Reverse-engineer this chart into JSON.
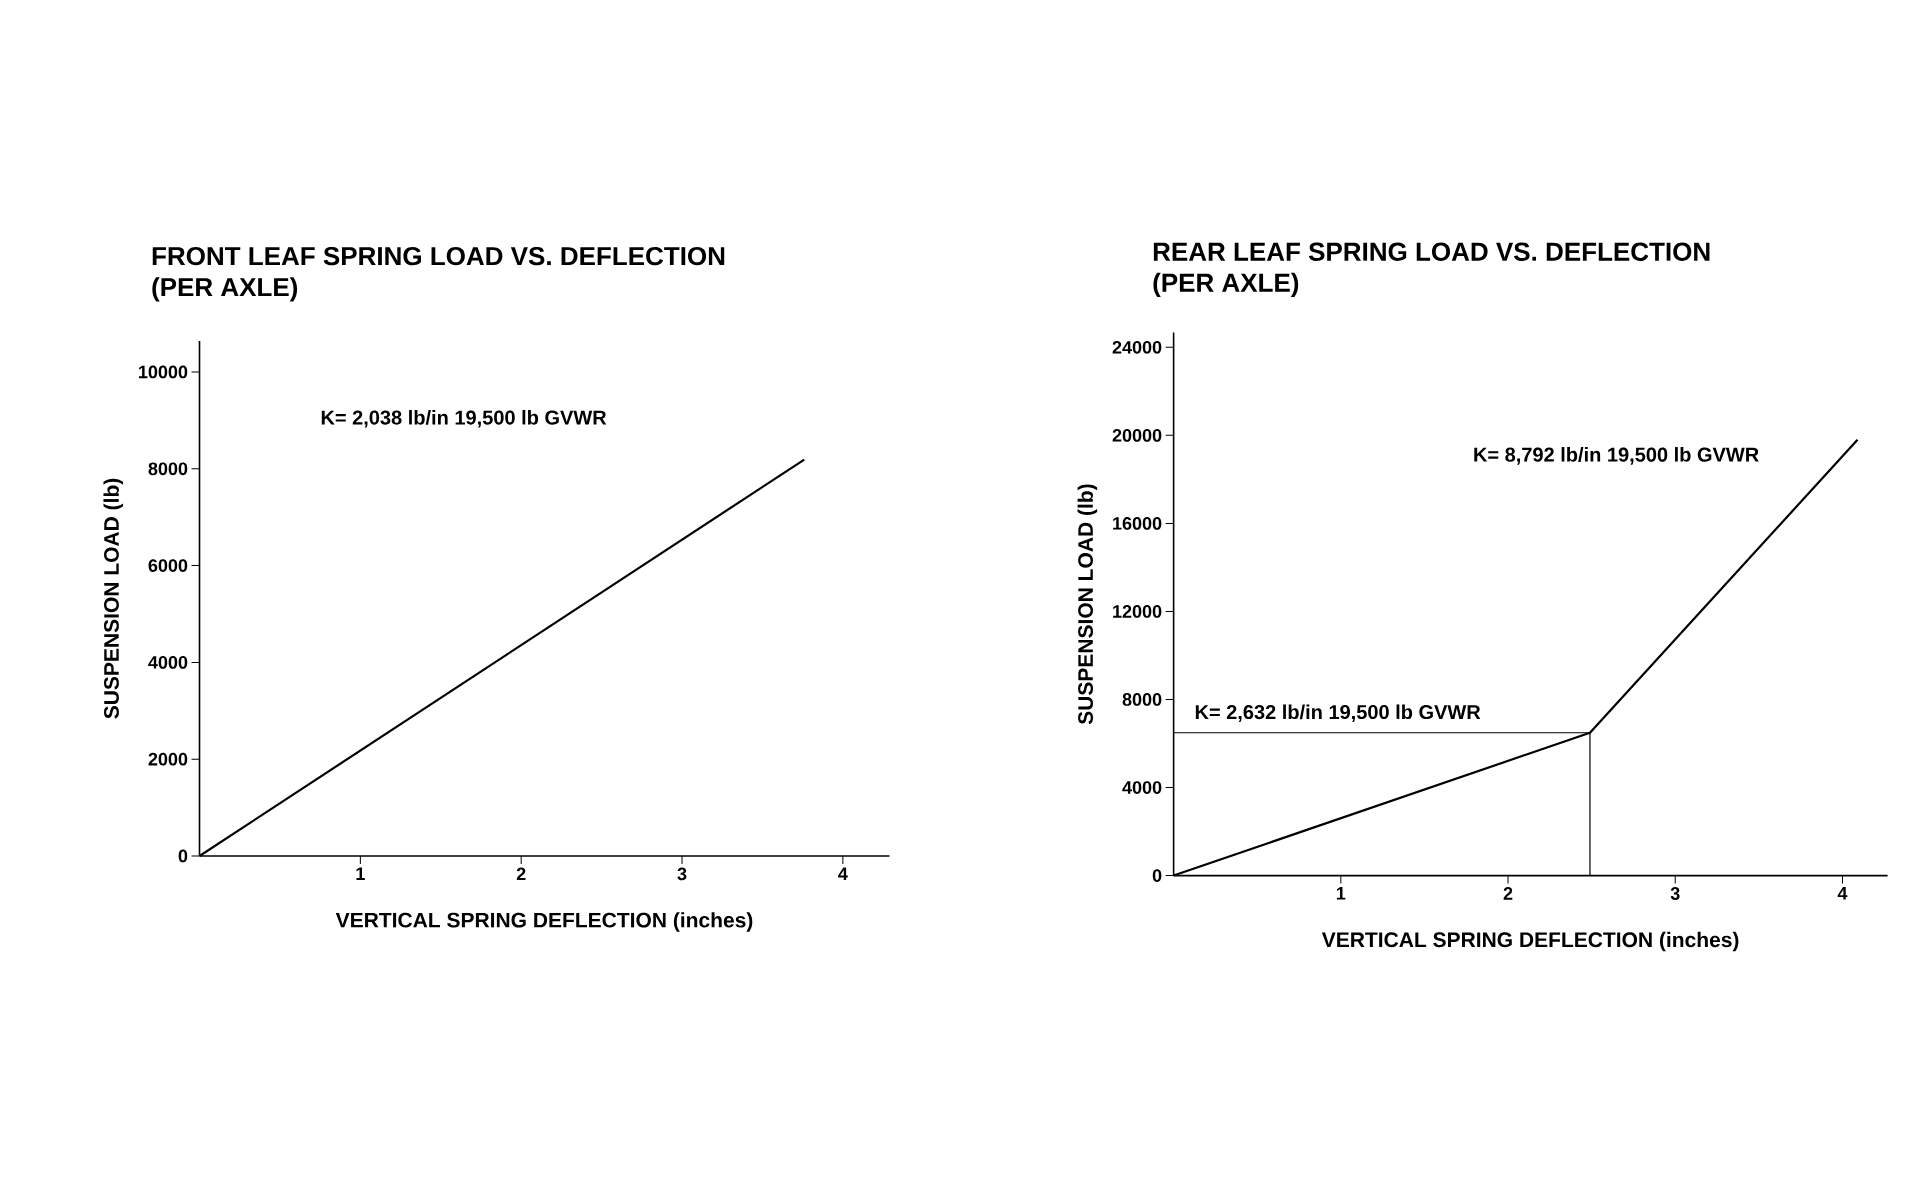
{
  "chart_data": [
    {
      "type": "line",
      "title": "FRONT LEAF SPRING LOAD VS. DEFLECTION",
      "subtitle": "(PER AXLE)",
      "xlabel": "VERTICAL SPRING DEFLECTION (inches)",
      "ylabel": "SUSPENSION LOAD (lb)",
      "x": [
        0,
        3.76
      ],
      "values": [
        0,
        8190
      ],
      "color": "#000000",
      "xlim": [
        0,
        4.29
      ],
      "ylim": [
        0,
        10640
      ],
      "xticks": [
        1,
        2,
        3,
        4
      ],
      "yticks": [
        {
          "value": 0,
          "label": "0"
        },
        2000,
        4000,
        6000,
        8000,
        10000
      ],
      "annotations": [
        "K= 2,038 lb/in 19,500 lb GVWR"
      ]
    },
    {
      "type": "line",
      "title": "REAR LEAF SPRING LOAD VS. DEFLECTION",
      "subtitle": "(PER AXLE)",
      "xlabel": "VERTICAL SPRING DEFLECTION (inches)",
      "ylabel": "SUSPENSION LOAD (lb)",
      "x": [
        0,
        2.49,
        4.09
      ],
      "values": [
        0,
        6490,
        19800
      ],
      "color": "#000000",
      "xlim": [
        0,
        4.27
      ],
      "ylim": [
        0,
        24670
      ],
      "xticks": [
        1,
        2,
        3,
        4
      ],
      "yticks": [
        {
          "value": 0,
          "label": "0"
        },
        4000,
        8000,
        12000,
        16000,
        20000,
        24000
      ],
      "ref_lines": [
        {
          "axis": "y",
          "value": 6490
        },
        {
          "axis": "x",
          "value": 2.49
        }
      ],
      "annotations": [
        "K= 8,792 lb/in 19,500 lb GVWR",
        "K= 2,632 lb/in 19,500 lb GVWR"
      ]
    }
  ]
}
